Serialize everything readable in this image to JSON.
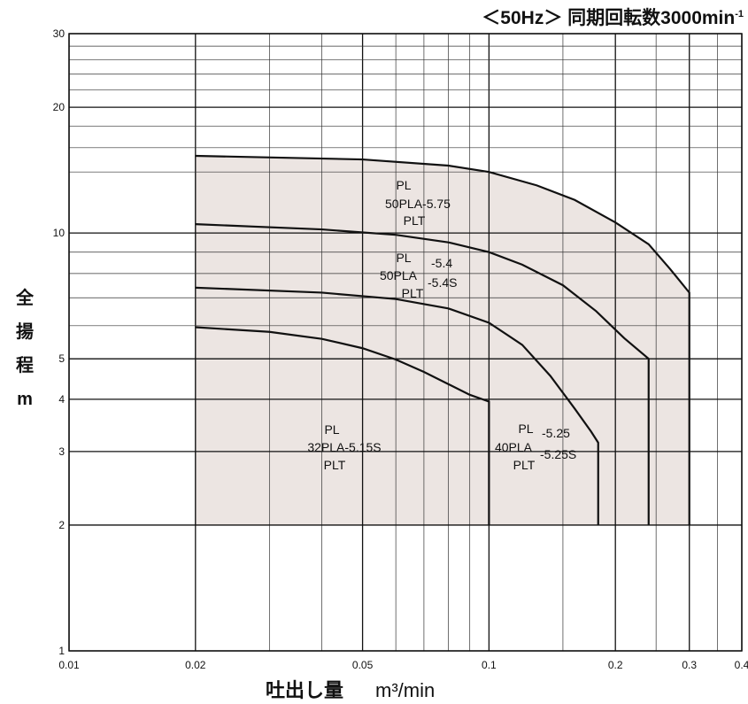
{
  "title": {
    "text": "＜50Hz＞ 同期回転数3000min",
    "superscript": "-1"
  },
  "xlabel": {
    "text": "吐出し量",
    "unit": "m³/min"
  },
  "ylabel": {
    "chars": [
      "全",
      "揚",
      "程",
      "m"
    ]
  },
  "chart_data": {
    "type": "area",
    "x_scale": "log",
    "y_scale": "log",
    "xlim": [
      0.01,
      0.4
    ],
    "ylim": [
      1,
      30
    ],
    "x_tick_labels": [
      "0.01",
      "0.02",
      "0.05",
      "0.1",
      "0.2",
      "0.3",
      "0.4"
    ],
    "x_tick_values": [
      0.01,
      0.02,
      0.05,
      0.1,
      0.2,
      0.3,
      0.4
    ],
    "y_tick_labels": [
      "1",
      "2",
      "3",
      "4",
      "5",
      "10",
      "20",
      "30"
    ],
    "y_tick_values": [
      1,
      2,
      3,
      4,
      5,
      10,
      20,
      30
    ],
    "x_minor_grid": [
      0.03,
      0.04,
      0.06,
      0.07,
      0.08,
      0.09,
      0.15,
      0.25,
      0.35
    ],
    "y_minor_grid": [
      6,
      7,
      8,
      9,
      14,
      16,
      18,
      22,
      24,
      26,
      28
    ],
    "grid": true,
    "fill_color": "#ece5e2",
    "region": [
      [
        0.02,
        2
      ],
      [
        0.02,
        15.3
      ],
      [
        0.3,
        7.2
      ],
      [
        0.3,
        2
      ]
    ],
    "series": [
      {
        "name": "32PLA-5.15S",
        "x": [
          0.02,
          0.03,
          0.04,
          0.05,
          0.06,
          0.07,
          0.08,
          0.09,
          0.1,
          0.1
        ],
        "y": [
          5.95,
          5.8,
          5.58,
          5.3,
          4.98,
          4.65,
          4.35,
          4.1,
          3.95,
          2
        ]
      },
      {
        "name": "40PLA-5.25",
        "x": [
          0.02,
          0.04,
          0.06,
          0.08,
          0.1,
          0.12,
          0.14,
          0.16,
          0.175,
          0.182,
          0.182
        ],
        "y": [
          7.4,
          7.2,
          6.95,
          6.6,
          6.1,
          5.4,
          4.55,
          3.8,
          3.35,
          3.15,
          2
        ]
      },
      {
        "name": "50PLA-5.4",
        "x": [
          0.02,
          0.04,
          0.06,
          0.08,
          0.1,
          0.12,
          0.15,
          0.18,
          0.21,
          0.24,
          0.24
        ],
        "y": [
          10.5,
          10.2,
          9.9,
          9.5,
          9.0,
          8.4,
          7.5,
          6.5,
          5.6,
          5.0,
          2
        ]
      },
      {
        "name": "50PLA-5.75",
        "x": [
          0.02,
          0.05,
          0.08,
          0.1,
          0.13,
          0.16,
          0.2,
          0.24,
          0.27,
          0.3,
          0.3
        ],
        "y": [
          15.3,
          15.0,
          14.5,
          14.0,
          13.0,
          12.0,
          10.6,
          9.4,
          8.2,
          7.2,
          2
        ]
      }
    ],
    "annotations": [
      {
        "lines": [
          "PL",
          "50PLA-5.75",
          "PLT"
        ]
      },
      {
        "lines": [
          "PL",
          "50PLA",
          "PLT",
          "-5.4",
          "-5.4S"
        ]
      },
      {
        "lines": [
          "PL",
          "32PLA-5.15S",
          "PLT"
        ]
      },
      {
        "lines": [
          "PL",
          "40PLA",
          "PLT",
          "-5.25",
          "-5.25S"
        ]
      }
    ]
  }
}
